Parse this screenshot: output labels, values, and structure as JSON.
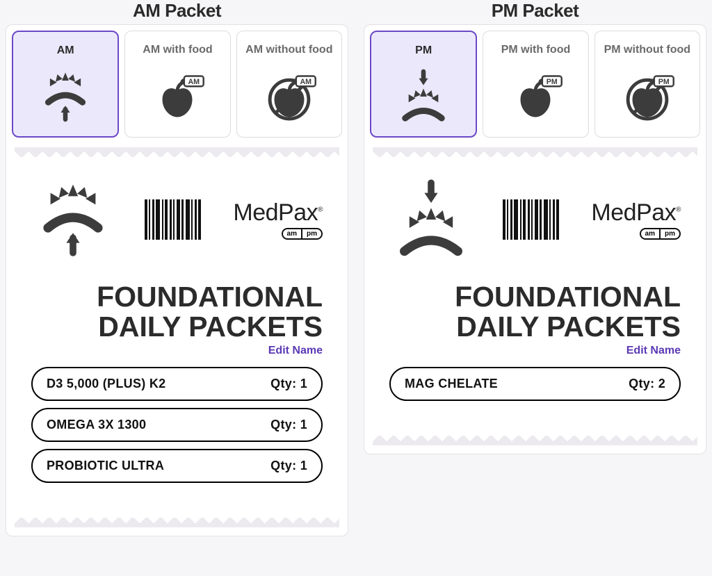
{
  "colors": {
    "accent": "#6c47c7",
    "accent_bg": "#ece8fb",
    "text": "#2b2b2b",
    "muted_text": "#6a6a6a",
    "card_border": "#e3e1e6",
    "tab_border": "#dcdce0",
    "page_bg": "#f6f5f7",
    "icon": "#3c3c3c",
    "link": "#5b39b5"
  },
  "packets": [
    {
      "header": "AM Packet",
      "time_code": "AM",
      "tabs": [
        {
          "label": "AM",
          "icon": "sunrise-up",
          "selected": true
        },
        {
          "label": "AM with food",
          "icon": "apple-am",
          "selected": false
        },
        {
          "label": "AM without food",
          "icon": "no-apple-am",
          "selected": false
        }
      ],
      "receipt": {
        "brand": "MedPax",
        "ampm_badge": [
          "am",
          "pm"
        ],
        "title_line1": "FOUNDATIONAL",
        "title_line2": "DAILY PACKETS",
        "edit_label": "Edit Name",
        "items": [
          {
            "name": "D3 5,000 (PLUS) K2",
            "qty": 1
          },
          {
            "name": "OMEGA 3X 1300",
            "qty": 1
          },
          {
            "name": "PROBIOTIC ULTRA",
            "qty": 1
          }
        ]
      }
    },
    {
      "header": "PM Packet",
      "time_code": "PM",
      "tabs": [
        {
          "label": "PM",
          "icon": "sunset-down",
          "selected": true
        },
        {
          "label": "PM with food",
          "icon": "apple-pm",
          "selected": false
        },
        {
          "label": "PM without food",
          "icon": "no-apple-pm",
          "selected": false
        }
      ],
      "receipt": {
        "brand": "MedPax",
        "ampm_badge": [
          "am",
          "pm"
        ],
        "title_line1": "FOUNDATIONAL",
        "title_line2": "DAILY PACKETS",
        "edit_label": "Edit Name",
        "items": [
          {
            "name": "MAG CHELATE",
            "qty": 2
          }
        ]
      }
    }
  ],
  "qty_prefix": "Qty: ",
  "barcode_widths": [
    4,
    2,
    3,
    6,
    2,
    4,
    3,
    2,
    5,
    3,
    6,
    2,
    3,
    4
  ]
}
